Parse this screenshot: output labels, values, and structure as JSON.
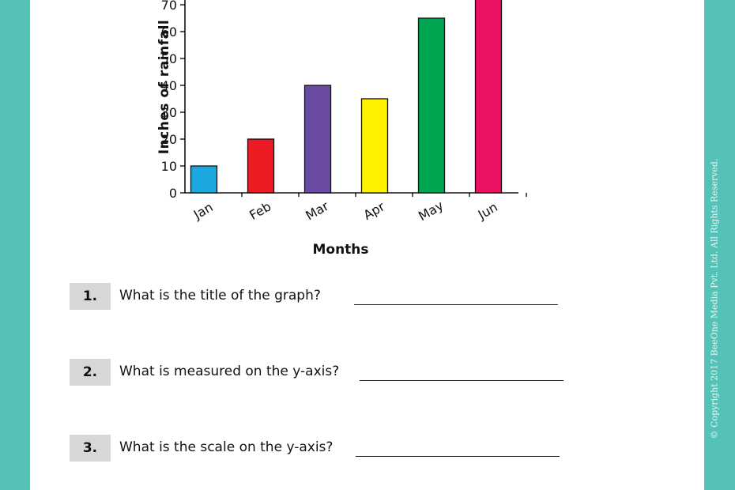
{
  "chart_data": {
    "type": "bar",
    "categories": [
      "Jan",
      "Feb",
      "Mar",
      "Apr",
      "May",
      "Jun"
    ],
    "values": [
      10,
      20,
      40,
      35,
      65,
      75
    ],
    "colors": [
      "#1ba8e0",
      "#ed1c24",
      "#6a4ba3",
      "#fff200",
      "#00a651",
      "#ed1163"
    ],
    "xlabel": "Months",
    "ylabel": "Inches of rainfall",
    "yticks": [
      0,
      10,
      20,
      30,
      40,
      50,
      60,
      70
    ],
    "ylim": [
      0,
      70
    ],
    "grid": false
  },
  "questions": [
    {
      "number": "1.",
      "text": "What is the title of the graph?"
    },
    {
      "number": "2.",
      "text": "What is measured on the y-axis?"
    },
    {
      "number": "3.",
      "text": "What is the scale on the y-axis?"
    }
  ],
  "copyright": "© Copyright 2017 BeeOne Media Pvt. Ltd. All Rights Reserved."
}
